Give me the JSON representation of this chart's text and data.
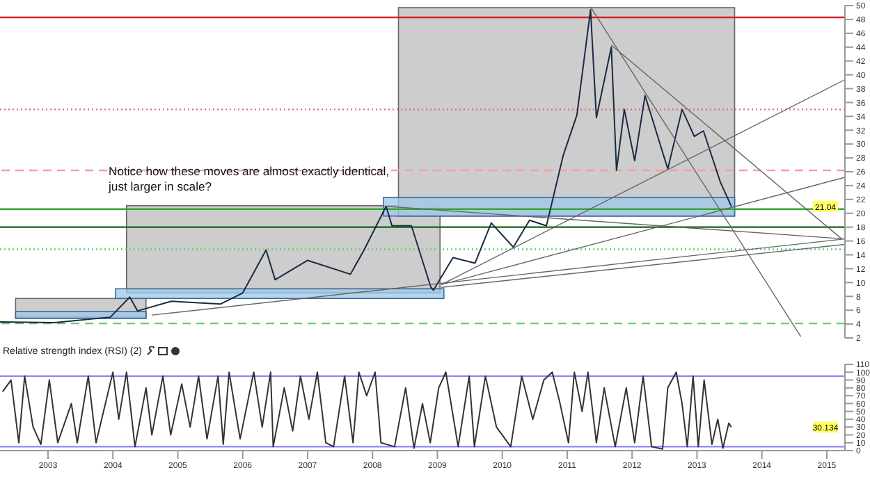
{
  "chart_data": [
    {
      "type": "line",
      "xlim": [
        2002.26,
        2015.28
      ],
      "ylim": [
        2,
        50
      ],
      "yticks": [
        2,
        4,
        6,
        8,
        10,
        12,
        14,
        16,
        18,
        20,
        22,
        24,
        26,
        28,
        30,
        32,
        34,
        36,
        38,
        40,
        42,
        44,
        46,
        48,
        50
      ],
      "tick_labels": "y",
      "series": [
        {
          "color": "#1a2a44",
          "x": [
            2002.26,
            2003.1,
            2003.96,
            2004.26,
            2004.38,
            2004.9,
            2005.66,
            2006.0,
            2006.36,
            2006.5,
            2007.0,
            2007.66,
            2007.87,
            2008.21,
            2008.3,
            2008.6,
            2008.9,
            2008.94,
            2009.24,
            2009.58,
            2009.83,
            2010.17,
            2010.42,
            2010.68,
            2010.94,
            2011.15,
            2011.36,
            2011.45,
            2011.68,
            2011.76,
            2011.88,
            2012.04,
            2012.2,
            2012.55,
            2012.77,
            2012.96,
            2013.1,
            2013.36,
            2013.53
          ],
          "values": [
            4.3,
            4.2,
            5.0,
            7.9,
            5.9,
            7.3,
            6.9,
            8.5,
            14.7,
            10.4,
            13.2,
            11.2,
            14.7,
            21.0,
            18.2,
            18.2,
            9.3,
            8.9,
            13.6,
            12.8,
            18.6,
            15.1,
            19.0,
            18.2,
            28.4,
            34.2,
            49.4,
            33.8,
            44.0,
            26.2,
            35.0,
            27.6,
            37.0,
            26.4,
            35.0,
            31.1,
            31.9,
            24.5,
            21.0
          ]
        },
        {
          "color": "#666666",
          "x": [
            2011.36,
            2014.6
          ],
          "values": [
            49.8,
            2.2
          ]
        },
        {
          "color": "#666666",
          "x": [
            2011.68,
            2015.23
          ],
          "values": [
            44.3,
            16.3
          ]
        },
        {
          "color": "#666666",
          "x": [
            2009.06,
            2015.28
          ],
          "values": [
            9.7,
            39.3
          ]
        },
        {
          "color": "#666666",
          "x": [
            2009.06,
            2015.28
          ],
          "values": [
            9.7,
            25.2
          ]
        },
        {
          "color": "#666666",
          "x": [
            2009.06,
            2015.28
          ],
          "values": [
            9.3,
            15.5
          ]
        },
        {
          "color": "#666666",
          "x": [
            2004.6,
            2015.28
          ],
          "values": [
            5.3,
            16.3
          ]
        },
        {
          "color": "#666666",
          "x": [
            2008.21,
            2015.28
          ],
          "values": [
            21.0,
            16.3
          ]
        }
      ],
      "ref_lines": [
        {
          "axis": "y",
          "value": 48.3,
          "color": "#dd2222",
          "line_style": "solid"
        },
        {
          "axis": "y",
          "value": 35,
          "color": "#ee6666",
          "line_style": "dotted"
        },
        {
          "axis": "y",
          "value": 26.2,
          "color": "#f4a0a0",
          "line_style": "dashed"
        },
        {
          "axis": "y",
          "value": 20.6,
          "color": "#33aa33",
          "line_style": "solid"
        },
        {
          "axis": "y",
          "value": 18,
          "color": "#116611",
          "line_style": "solid"
        },
        {
          "axis": "y",
          "value": 14.8,
          "color": "#66cc66",
          "line_style": "dotted"
        },
        {
          "axis": "y",
          "value": 4.1,
          "color": "#66cc66",
          "line_style": "dashed"
        }
      ],
      "annotations": [
        "Notice how these moves are almost exactly identical, just larger in scale?",
        "21.04"
      ]
    },
    {
      "type": "line",
      "title": "Relative strength index (RSI) (2)",
      "xlim": [
        2002.26,
        2015.28
      ],
      "xticks": [
        2003,
        2004,
        2005,
        2006,
        2007,
        2008,
        2009,
        2010,
        2011,
        2012,
        2013,
        2014,
        2015
      ],
      "ylim": [
        0,
        110
      ],
      "yticks": [
        0,
        10,
        20,
        30,
        40,
        50,
        60,
        70,
        80,
        90,
        100,
        110
      ],
      "series": [
        {
          "color": "#333333",
          "x": [
            2002.3,
            2002.43,
            2002.55,
            2002.64,
            2002.77,
            2002.89,
            2003.02,
            2003.15,
            2003.36,
            2003.45,
            2003.62,
            2003.74,
            2004.0,
            2004.09,
            2004.21,
            2004.34,
            2004.51,
            2004.6,
            2004.77,
            2004.89,
            2005.06,
            2005.19,
            2005.32,
            2005.45,
            2005.62,
            2005.7,
            2005.79,
            2005.96,
            2006.17,
            2006.3,
            2006.43,
            2006.47,
            2006.64,
            2006.77,
            2006.89,
            2007.02,
            2007.15,
            2007.28,
            2007.4,
            2007.57,
            2007.7,
            2007.79,
            2007.91,
            2008.04,
            2008.13,
            2008.34,
            2008.51,
            2008.64,
            2008.77,
            2008.89,
            2009.02,
            2009.13,
            2009.32,
            2009.49,
            2009.57,
            2009.74,
            2009.91,
            2010.13,
            2010.3,
            2010.47,
            2010.64,
            2010.77,
            2010.89,
            2011.02,
            2011.11,
            2011.23,
            2011.32,
            2011.45,
            2011.57,
            2011.74,
            2011.91,
            2012.04,
            2012.17,
            2012.3,
            2012.47,
            2012.55,
            2012.68,
            2012.77,
            2012.85,
            2012.94,
            2013.02,
            2013.11,
            2013.23,
            2013.32,
            2013.4,
            2013.49,
            2013.53
          ],
          "values": [
            75,
            90,
            10,
            95,
            30,
            8,
            90,
            10,
            60,
            10,
            95,
            10,
            100,
            40,
            100,
            5,
            80,
            20,
            95,
            20,
            85,
            30,
            95,
            15,
            95,
            8,
            100,
            15,
            100,
            30,
            100,
            5,
            80,
            25,
            95,
            40,
            100,
            10,
            5,
            95,
            10,
            100,
            70,
            100,
            10,
            5,
            80,
            3,
            60,
            10,
            80,
            100,
            5,
            95,
            5,
            95,
            30,
            5,
            95,
            40,
            90,
            100,
            60,
            10,
            100,
            50,
            100,
            10,
            80,
            5,
            80,
            10,
            95,
            5,
            2,
            80,
            100,
            60,
            5,
            95,
            5,
            90,
            8,
            40,
            3,
            35,
            30
          ]
        }
      ],
      "ref_lines": [
        {
          "axis": "y",
          "value": 95,
          "color": "#8888ff",
          "line_style": "solid"
        },
        {
          "axis": "y",
          "value": 5,
          "color": "#8888ff",
          "line_style": "solid"
        }
      ],
      "annotations": [
        "30.134"
      ]
    }
  ]
}
